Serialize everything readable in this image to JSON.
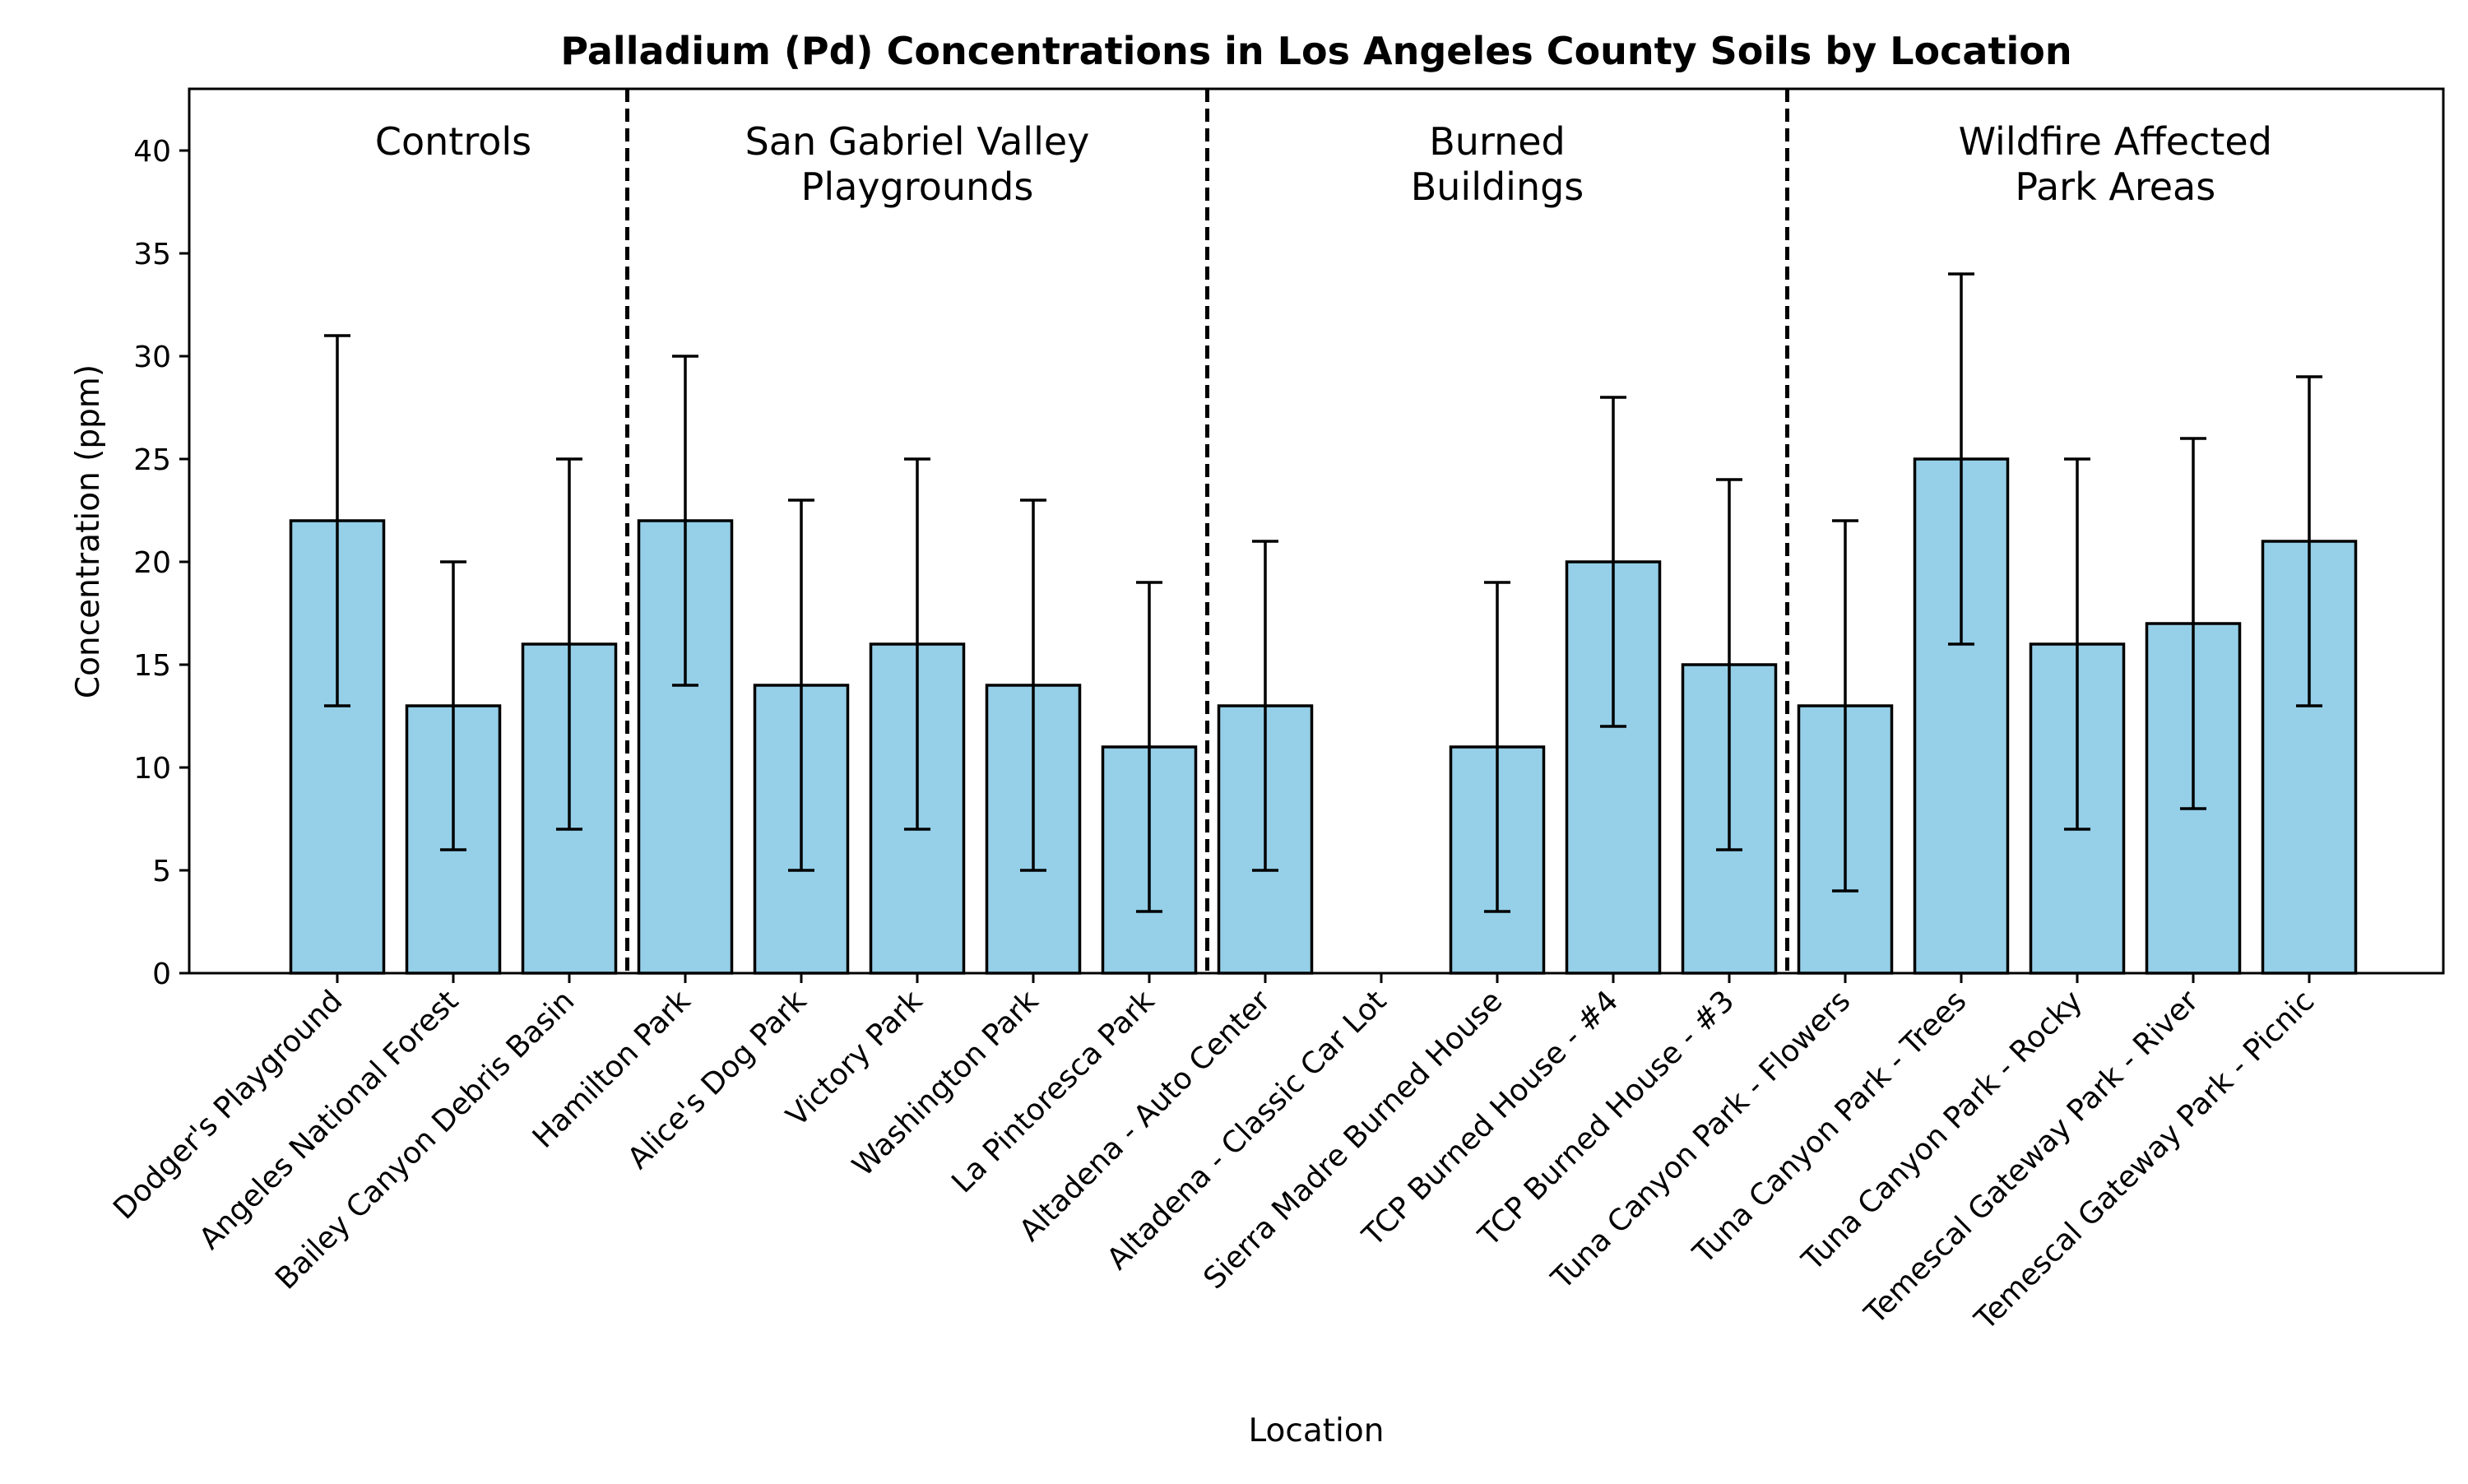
{
  "chart_data": {
    "type": "bar",
    "title": "Palladium (Pd) Concentrations in Los Angeles County Soils by Location",
    "xlabel": "Location",
    "ylabel": "Concentration (ppm)",
    "ylim": [
      0,
      43
    ],
    "yticks": [
      0,
      5,
      10,
      15,
      20,
      25,
      30,
      35,
      40
    ],
    "grid": false,
    "bar_color": "#95cfe8",
    "categories": [
      "Dodger's Playground",
      "Angeles National Forest",
      "Bailey Canyon Debris Basin",
      "Hamilton Park",
      "Alice's Dog Park",
      "Victory Park",
      "Washington Park",
      "La Pintoresca Park",
      "Altadena - Auto Center",
      "Altadena - Classic Car Lot",
      "Sierra Madre Burned House",
      "TCP Burned House - #4",
      "TCP Burned House - #3",
      "Tuna Canyon Park - Flowers",
      "Tuna Canyon Park - Trees",
      "Tuna Canyon Park - Rocky",
      "Temescal Gateway Park - River",
      "Temescal Gateway Park - Picnic"
    ],
    "values": [
      22,
      13,
      16,
      22,
      14,
      16,
      14,
      11,
      13,
      0,
      11,
      20,
      15,
      13,
      25,
      16,
      17,
      21
    ],
    "error_low": [
      13,
      6,
      7,
      14,
      5,
      7,
      5,
      3,
      5,
      null,
      3,
      12,
      6,
      4,
      16,
      7,
      8,
      13
    ],
    "error_high": [
      31,
      20,
      25,
      30,
      23,
      25,
      23,
      19,
      21,
      null,
      19,
      28,
      24,
      22,
      34,
      25,
      26,
      29
    ],
    "groups": [
      {
        "label_lines": [
          "Controls"
        ],
        "start": 0,
        "end": 2
      },
      {
        "label_lines": [
          "San Gabriel Valley",
          "Playgrounds"
        ],
        "start": 3,
        "end": 7
      },
      {
        "label_lines": [
          "Burned",
          "Buildings"
        ],
        "start": 8,
        "end": 12
      },
      {
        "label_lines": [
          "Wildfire Affected",
          "Park Areas"
        ],
        "start": 13,
        "end": 17
      }
    ]
  }
}
